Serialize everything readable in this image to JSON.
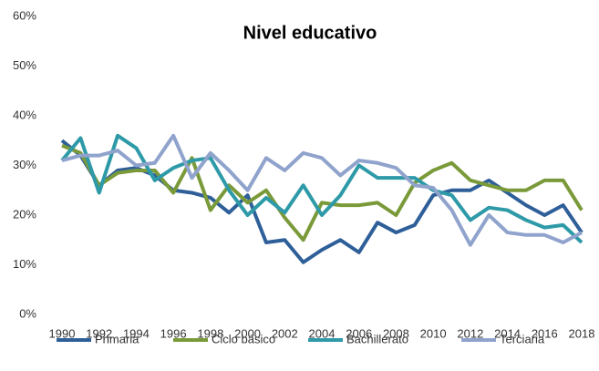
{
  "chart_data": {
    "type": "line",
    "title": "Nivel educativo",
    "x": [
      1990,
      1991,
      1992,
      1993,
      1994,
      1995,
      1996,
      1997,
      1998,
      1999,
      2000,
      2001,
      2002,
      2003,
      2004,
      2005,
      2006,
      2007,
      2008,
      2009,
      2010,
      2011,
      2012,
      2013,
      2014,
      2015,
      2016,
      2017,
      2018
    ],
    "xlim": [
      1990,
      2018
    ],
    "xticks": [
      1990,
      1992,
      1994,
      1996,
      1998,
      2000,
      2002,
      2004,
      2006,
      2008,
      2010,
      2012,
      2014,
      2016,
      2018
    ],
    "ylim": [
      0,
      60
    ],
    "yticks": [
      {
        "value": 0,
        "label": "0%"
      },
      {
        "value": 10,
        "label": "10%"
      },
      {
        "value": 20,
        "label": "20%"
      },
      {
        "value": 30,
        "label": "30%"
      },
      {
        "value": 40,
        "label": "40%"
      },
      {
        "value": 50,
        "label": "50%"
      },
      {
        "value": 60,
        "label": "60%"
      }
    ],
    "series": [
      {
        "name": "Primaria",
        "color": "#2e5f99",
        "values": [
          35,
          32,
          26,
          29,
          29.5,
          28,
          25,
          24.5,
          23.5,
          20.5,
          24,
          14.5,
          15,
          10.5,
          13,
          15,
          12.5,
          18.5,
          16.5,
          18,
          24,
          25,
          25,
          27,
          24.5,
          22,
          20,
          22,
          16.5
        ]
      },
      {
        "name": "Ciclo básico",
        "color": "#7a9a3a",
        "values": [
          34,
          32.5,
          26,
          28.5,
          29,
          29,
          24.5,
          31.5,
          21,
          26,
          22.5,
          25,
          19.5,
          15,
          22.5,
          22,
          22,
          22.5,
          20,
          26.5,
          29,
          30.5,
          27,
          26,
          25,
          25,
          27,
          27,
          21
        ]
      },
      {
        "name": "Bachillerato",
        "color": "#2e9aa8",
        "values": [
          31,
          35.5,
          24.5,
          36,
          33.5,
          27,
          29.5,
          31,
          31.5,
          25,
          20,
          23.5,
          20.5,
          26,
          20,
          24,
          30,
          27.5,
          27.5,
          27.5,
          25,
          24,
          19,
          21.5,
          21,
          19,
          17.5,
          18,
          14.5
        ]
      },
      {
        "name": "Terciaria",
        "color": "#8fa3cc",
        "values": [
          31,
          32,
          32,
          33,
          30,
          30.5,
          36,
          27.5,
          32.5,
          29,
          25,
          31.5,
          29,
          32.5,
          31.5,
          28,
          31,
          30.5,
          29.5,
          26,
          25.5,
          21,
          14,
          20,
          16.5,
          16,
          16,
          14.5,
          16.5
        ]
      }
    ],
    "legend": "bottom"
  }
}
